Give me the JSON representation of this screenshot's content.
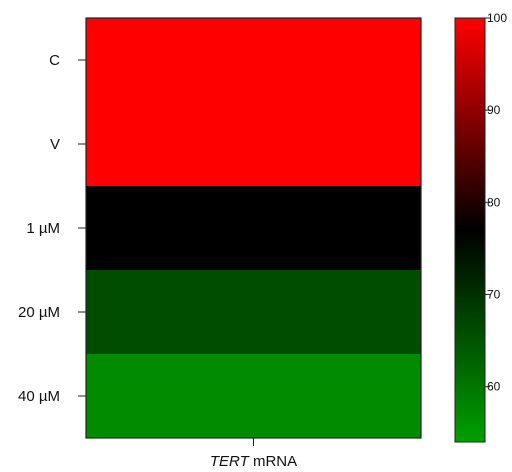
{
  "chart_data": {
    "type": "heatmap",
    "title": "",
    "x_categories": [
      {
        "italic": "TERT",
        "rest": " mRNA"
      }
    ],
    "rows": [
      "C",
      "V",
      "1 µM",
      "20 µM",
      "40 µM"
    ],
    "values": [
      100,
      100,
      77,
      66,
      57
    ],
    "colorbar": {
      "range": [
        54,
        100
      ],
      "ticks": [
        "100",
        "90",
        "80",
        "70",
        "60"
      ],
      "tick_values": [
        100,
        90,
        80,
        70,
        60
      ],
      "low_color": "#00a000",
      "mid_color": "#000000",
      "mid_value": 77,
      "high_color": "#ff0000"
    },
    "xlabel": "",
    "ylabel": ""
  }
}
